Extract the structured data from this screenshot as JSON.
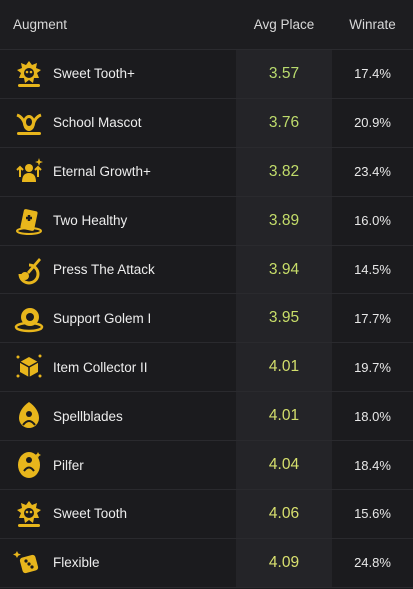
{
  "header": {
    "augment": "Augment",
    "avg_place": "Avg Place",
    "winrate": "Winrate"
  },
  "colors": {
    "icon_gold": "#e8b61c",
    "avg_place_text": "#c7d96b",
    "row_highlight": "#242428"
  },
  "rows": [
    {
      "name": "Sweet Tooth+",
      "avg": "3.57",
      "win": "17.4%",
      "icon": "sweet-tooth-icon",
      "avg_color": "#b9db6e"
    },
    {
      "name": "School Mascot",
      "avg": "3.76",
      "win": "20.9%",
      "icon": "school-mascot-icon",
      "avg_color": "#bedb6c"
    },
    {
      "name": "Eternal Growth+",
      "avg": "3.82",
      "win": "23.4%",
      "icon": "eternal-growth-icon",
      "avg_color": "#c1dc6b"
    },
    {
      "name": "Two Healthy",
      "avg": "3.89",
      "win": "16.0%",
      "icon": "two-healthy-icon",
      "avg_color": "#c4dd6a"
    },
    {
      "name": "Press The Attack",
      "avg": "3.94",
      "win": "14.5%",
      "icon": "press-the-attack-icon",
      "avg_color": "#c7dd69"
    },
    {
      "name": "Support Golem I",
      "avg": "3.95",
      "win": "17.7%",
      "icon": "support-golem-icon",
      "avg_color": "#c8de69"
    },
    {
      "name": "Item Collector II",
      "avg": "4.01",
      "win": "19.7%",
      "icon": "item-collector-icon",
      "avg_color": "#d3df6c"
    },
    {
      "name": "Spellblades",
      "avg": "4.01",
      "win": "18.0%",
      "icon": "spellblades-icon",
      "avg_color": "#d3df6c"
    },
    {
      "name": "Pilfer",
      "avg": "4.04",
      "win": "18.4%",
      "icon": "pilfer-icon",
      "avg_color": "#d6e06d"
    },
    {
      "name": "Sweet Tooth",
      "avg": "4.06",
      "win": "15.6%",
      "icon": "sweet-tooth-icon",
      "avg_color": "#d8e06e"
    },
    {
      "name": "Flexible",
      "avg": "4.09",
      "win": "24.8%",
      "icon": "flexible-icon",
      "avg_color": "#dae16f"
    }
  ]
}
